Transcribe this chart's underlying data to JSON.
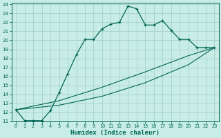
{
  "xlabel": "Humidex (Indice chaleur)",
  "bg_color": "#c8ece6",
  "grid_color": "#a0ccc6",
  "line_color": "#006655",
  "xlim": [
    -0.5,
    23.5
  ],
  "ylim": [
    11,
    24.2
  ],
  "xticks": [
    0,
    1,
    2,
    3,
    4,
    5,
    6,
    7,
    8,
    9,
    10,
    11,
    12,
    13,
    14,
    15,
    16,
    17,
    18,
    19,
    20,
    21,
    22,
    23
  ],
  "yticks": [
    11,
    12,
    13,
    14,
    15,
    16,
    17,
    18,
    19,
    20,
    21,
    22,
    23,
    24
  ],
  "line1_x": [
    0,
    1,
    2,
    3,
    4,
    5,
    6,
    7,
    8,
    9,
    10,
    11,
    12,
    13,
    14,
    15,
    16,
    17,
    18,
    19,
    20,
    21,
    22,
    23
  ],
  "line1_y": [
    12.3,
    11.1,
    11.1,
    11.1,
    12.2,
    14.2,
    16.3,
    18.4,
    20.1,
    20.1,
    21.3,
    21.8,
    22.0,
    23.8,
    23.5,
    21.7,
    21.7,
    22.2,
    21.1,
    20.1,
    20.1,
    19.2,
    19.2,
    19.2
  ],
  "line2_x": [
    0,
    23
  ],
  "line2_y": [
    12.3,
    19.2
  ],
  "line3_x": [
    0,
    23
  ],
  "line3_y": [
    12.3,
    19.2
  ],
  "line2_ctrl_x": [
    0,
    5,
    10,
    15,
    20,
    23
  ],
  "line2_ctrl_y": [
    12.3,
    12.8,
    13.8,
    15.3,
    17.3,
    19.2
  ],
  "line3_ctrl_x": [
    0,
    5,
    10,
    15,
    20,
    23
  ],
  "line3_ctrl_y": [
    12.3,
    13.3,
    14.8,
    16.5,
    18.3,
    19.2
  ]
}
